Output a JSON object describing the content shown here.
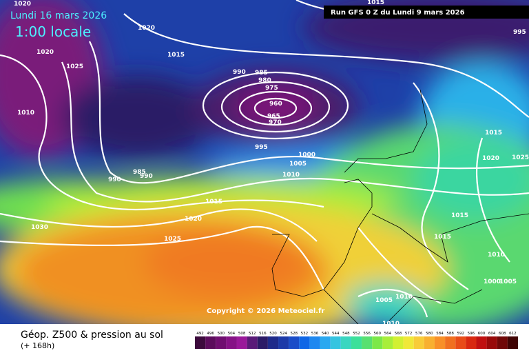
{
  "header": {
    "date": "Lundi 16 mars 2026",
    "time": "1:00 locale",
    "run": "Run GFS 0 Z du Lundi 9 mars 2026"
  },
  "isobar_labels": [
    "1020",
    "1020",
    "1020",
    "1025",
    "1015",
    "990",
    "985",
    "980",
    "975",
    "960",
    "965",
    "970",
    "1010",
    "995",
    "1000",
    "1005",
    "1010",
    "985",
    "990",
    "990",
    "1015",
    "1020",
    "1025",
    "1030",
    "995",
    "1015",
    "1020",
    "1025",
    "1015",
    "1015",
    "1010",
    "1005",
    "1010",
    "1010",
    "1005",
    "1000",
    "1015"
  ],
  "copyright": "Copyright © 2026 Meteociel.fr",
  "footer": {
    "title": "Géop. Z500 & pression au sol",
    "lead": "(+ 168h)"
  },
  "scale": {
    "labels": [
      492,
      496,
      500,
      504,
      508,
      512,
      516,
      520,
      524,
      528,
      532,
      536,
      540,
      544,
      548,
      552,
      556,
      560,
      564,
      568,
      572,
      576,
      580,
      584,
      588,
      592,
      596,
      600,
      604,
      608,
      612
    ],
    "colors": [
      "#3c0a3c",
      "#5c0c5c",
      "#700e70",
      "#861286",
      "#9a189a",
      "#5a1a78",
      "#2b1a66",
      "#1e2a8a",
      "#1d3aa8",
      "#1a4cc8",
      "#0f66e6",
      "#1e88f0",
      "#2aa8f0",
      "#35c4e0",
      "#3ad6c0",
      "#3ce09a",
      "#58e070",
      "#7ce848",
      "#a8ee3a",
      "#d2f032",
      "#f0e838",
      "#f8cc38",
      "#f8b030",
      "#f89028",
      "#f07020",
      "#e84c18",
      "#d82810",
      "#c01010",
      "#980a0a",
      "#700808",
      "#400404"
    ]
  }
}
